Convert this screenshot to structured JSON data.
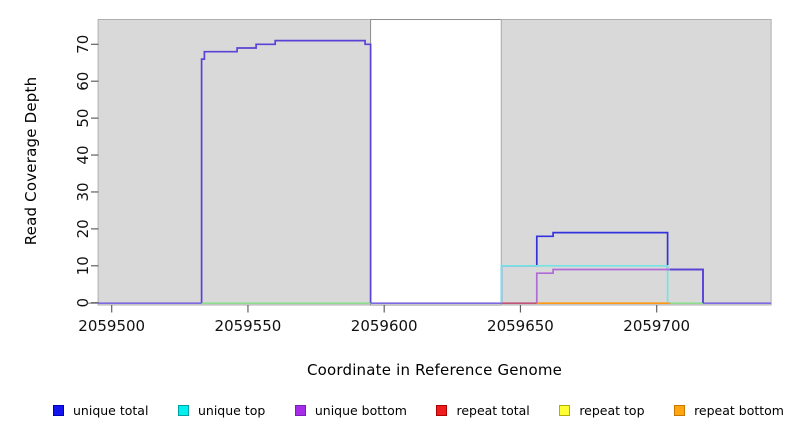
{
  "chart_data": {
    "type": "line",
    "title": "",
    "xlabel": "Coordinate in Reference Genome",
    "ylabel": "Read Coverage Depth",
    "x_ticks": [
      2059500,
      2059550,
      2059600,
      2059650,
      2059700
    ],
    "y_ticks": [
      0,
      10,
      20,
      30,
      40,
      50,
      60,
      70
    ],
    "xlim": [
      2059495,
      2059742
    ],
    "ylim": [
      0,
      76.5
    ],
    "grid": "off",
    "legend_position": "bottom",
    "background_regions": [
      {
        "name": "shaded-region-left",
        "from": 2059495,
        "to": 2059595,
        "fill": "#d9d9d9",
        "stroke": "#b0b0b0"
      },
      {
        "name": "white-gap-region",
        "from": 2059595,
        "to": 2059643,
        "fill": "#ffffff",
        "stroke": "#8f8f8f"
      },
      {
        "name": "shaded-region-right",
        "from": 2059643,
        "to": 2059742,
        "fill": "#d9d9d9",
        "stroke": "#b0b0b0"
      }
    ],
    "series": [
      {
        "name": "unique total",
        "color": "#1414ee",
        "steps": [
          [
            2059495,
            0
          ],
          [
            2059533,
            66
          ],
          [
            2059534,
            68
          ],
          [
            2059546,
            69
          ],
          [
            2059553,
            70
          ],
          [
            2059560,
            71
          ],
          [
            2059593,
            70
          ],
          [
            2059595,
            0
          ],
          [
            2059643,
            10
          ],
          [
            2059656,
            18
          ],
          [
            2059662,
            19
          ],
          [
            2059704,
            9
          ],
          [
            2059717,
            0
          ]
        ]
      },
      {
        "name": "unique top",
        "color": "#00eeee",
        "steps": [
          [
            2059495,
            0
          ],
          [
            2059643,
            10
          ],
          [
            2059704,
            0
          ]
        ]
      },
      {
        "name": "unique bottom",
        "color": "#a62ce8",
        "steps": [
          [
            2059495,
            0
          ],
          [
            2059533,
            66
          ],
          [
            2059534,
            68
          ],
          [
            2059546,
            69
          ],
          [
            2059553,
            70
          ],
          [
            2059560,
            71
          ],
          [
            2059593,
            70
          ],
          [
            2059595,
            0
          ],
          [
            2059656,
            8
          ],
          [
            2059662,
            9
          ],
          [
            2059717,
            0
          ]
        ]
      },
      {
        "name": "repeat total",
        "color": "#ee1c1c",
        "steps": [
          [
            2059495,
            0
          ],
          [
            2059742,
            0
          ]
        ]
      },
      {
        "name": "repeat top",
        "color": "#ffff33",
        "steps": [
          [
            2059495,
            0
          ],
          [
            2059742,
            0
          ]
        ]
      },
      {
        "name": "repeat bottom",
        "color": "#ffa510",
        "steps": [
          [
            2059495,
            0
          ],
          [
            2059742,
            0
          ]
        ]
      }
    ],
    "visible_paths": [
      {
        "name": "unique-hump-line",
        "color": "#5b42d6",
        "points": [
          [
            2059533,
            0
          ],
          [
            2059533,
            66
          ],
          [
            2059534,
            66
          ],
          [
            2059534,
            68
          ],
          [
            2059546,
            68
          ],
          [
            2059546,
            69
          ],
          [
            2059553,
            69
          ],
          [
            2059553,
            70
          ],
          [
            2059560,
            70
          ],
          [
            2059560,
            71
          ],
          [
            2059593,
            71
          ],
          [
            2059593,
            70
          ],
          [
            2059595,
            70
          ],
          [
            2059595,
            0
          ]
        ]
      },
      {
        "name": "unique-total-right-line",
        "color": "#3333dd",
        "points": [
          [
            2059643,
            0
          ],
          [
            2059643,
            10
          ],
          [
            2059656,
            10
          ],
          [
            2059656,
            18
          ],
          [
            2059662,
            18
          ],
          [
            2059662,
            19
          ],
          [
            2059704,
            19
          ],
          [
            2059704,
            9
          ],
          [
            2059717,
            9
          ],
          [
            2059717,
            0
          ]
        ]
      },
      {
        "name": "unique-top-right-line",
        "color": "#74e3e3",
        "points": [
          [
            2059643,
            0
          ],
          [
            2059643,
            10
          ],
          [
            2059704,
            10
          ],
          [
            2059704,
            0
          ]
        ]
      },
      {
        "name": "unique-bottom-right-line",
        "color": "#b06cd6",
        "points": [
          [
            2059656,
            0
          ],
          [
            2059656,
            8
          ],
          [
            2059662,
            8
          ],
          [
            2059662,
            9
          ],
          [
            2059705,
            9
          ]
        ]
      },
      {
        "name": "total-bottom-overlap-line",
        "color": "#5b42d6",
        "points": [
          [
            2059705,
            9
          ],
          [
            2059717,
            9
          ],
          [
            2059717,
            0
          ]
        ]
      }
    ],
    "baseline_segments": [
      {
        "from": 2059495,
        "to": 2059533,
        "color": "#7d6ae0"
      },
      {
        "from": 2059533,
        "to": 2059595,
        "color": "#8fdd8f"
      },
      {
        "from": 2059595,
        "to": 2059643,
        "color": "#7d6ae0"
      },
      {
        "from": 2059643,
        "to": 2059656,
        "color": "#c05577"
      },
      {
        "from": 2059656,
        "to": 2059705,
        "color": "#ff9914"
      },
      {
        "from": 2059705,
        "to": 2059717,
        "color": "#8fdd8f"
      },
      {
        "from": 2059717,
        "to": 2059742,
        "color": "#7d6ae0"
      }
    ],
    "legend": {
      "items": [
        {
          "label": "unique total",
          "fill": "#1414ee",
          "border": "#0000bb"
        },
        {
          "label": "unique top",
          "fill": "#00eeee",
          "border": "#00a0a0"
        },
        {
          "label": "unique bottom",
          "fill": "#a62ce8",
          "border": "#7a1fb5"
        },
        {
          "label": "repeat total",
          "fill": "#ee1c1c",
          "border": "#aa0000"
        },
        {
          "label": "repeat top",
          "fill": "#ffff33",
          "border": "#b0b000"
        },
        {
          "label": "repeat bottom",
          "fill": "#ffa510",
          "border": "#c77700"
        }
      ]
    }
  }
}
